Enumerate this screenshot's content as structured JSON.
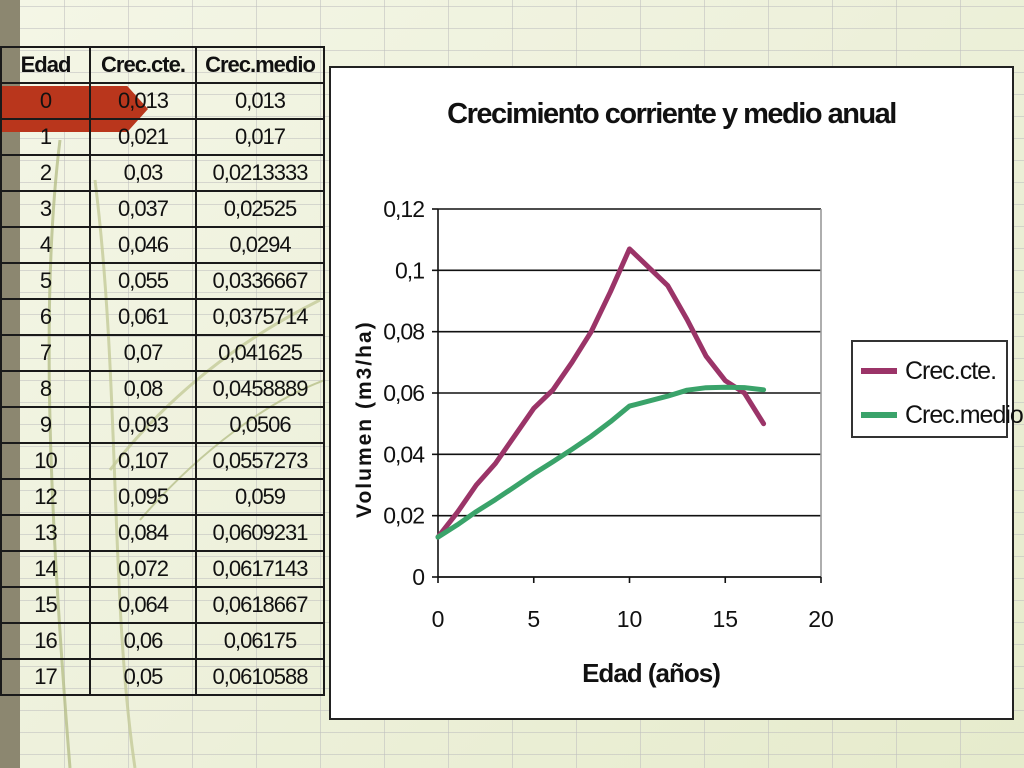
{
  "table": {
    "headers": [
      "Edad",
      "Crec.cte.",
      "Crec.medio"
    ],
    "rows": [
      [
        "0",
        "0,013",
        "0,013"
      ],
      [
        "1",
        "0,021",
        "0,017"
      ],
      [
        "2",
        "0,03",
        "0,0213333"
      ],
      [
        "3",
        "0,037",
        "0,02525"
      ],
      [
        "4",
        "0,046",
        "0,0294"
      ],
      [
        "5",
        "0,055",
        "0,0336667"
      ],
      [
        "6",
        "0,061",
        "0,0375714"
      ],
      [
        "7",
        "0,07",
        "0,041625"
      ],
      [
        "8",
        "0,08",
        "0,0458889"
      ],
      [
        "9",
        "0,093",
        "0,0506"
      ],
      [
        "10",
        "0,107",
        "0,0557273"
      ],
      [
        "12",
        "0,095",
        "0,059"
      ],
      [
        "13",
        "0,084",
        "0,0609231"
      ],
      [
        "14",
        "0,072",
        "0,0617143"
      ],
      [
        "15",
        "0,064",
        "0,0618667"
      ],
      [
        "16",
        "0,06",
        "0,06175"
      ],
      [
        "17",
        "0,05",
        "0,0610588"
      ]
    ]
  },
  "chart_data": {
    "type": "line",
    "title": "Crecimiento corriente y medio anual",
    "xlabel": "Edad (años)",
    "ylabel": "Volumen (m3/ha)",
    "xlim": [
      0,
      20
    ],
    "ylim": [
      0,
      0.12
    ],
    "x_ticks": [
      0,
      5,
      10,
      15,
      20
    ],
    "x_tick_labels": [
      "0",
      "5",
      "10",
      "15",
      "20"
    ],
    "y_ticks": [
      0,
      0.02,
      0.04,
      0.06,
      0.08,
      0.1,
      0.12
    ],
    "y_tick_labels": [
      "0",
      "0,02",
      "0,04",
      "0,06",
      "0,08",
      "0,1",
      "0,12"
    ],
    "grid": "horizontal",
    "legend_position": "right",
    "x": [
      0,
      1,
      2,
      3,
      4,
      5,
      6,
      7,
      8,
      9,
      10,
      12,
      13,
      14,
      15,
      16,
      17
    ],
    "series": [
      {
        "name": "Crec.cte.",
        "color": "#9b3468",
        "values": [
          0.013,
          0.021,
          0.03,
          0.037,
          0.046,
          0.055,
          0.061,
          0.07,
          0.08,
          0.093,
          0.107,
          0.095,
          0.084,
          0.072,
          0.064,
          0.06,
          0.05
        ]
      },
      {
        "name": "Crec.medio",
        "color": "#3aa36a",
        "values": [
          0.013,
          0.017,
          0.0213333,
          0.02525,
          0.0294,
          0.0336667,
          0.0375714,
          0.041625,
          0.0458889,
          0.0506,
          0.0557273,
          0.059,
          0.0609231,
          0.0617143,
          0.0618667,
          0.06175,
          0.0610588
        ]
      }
    ]
  }
}
